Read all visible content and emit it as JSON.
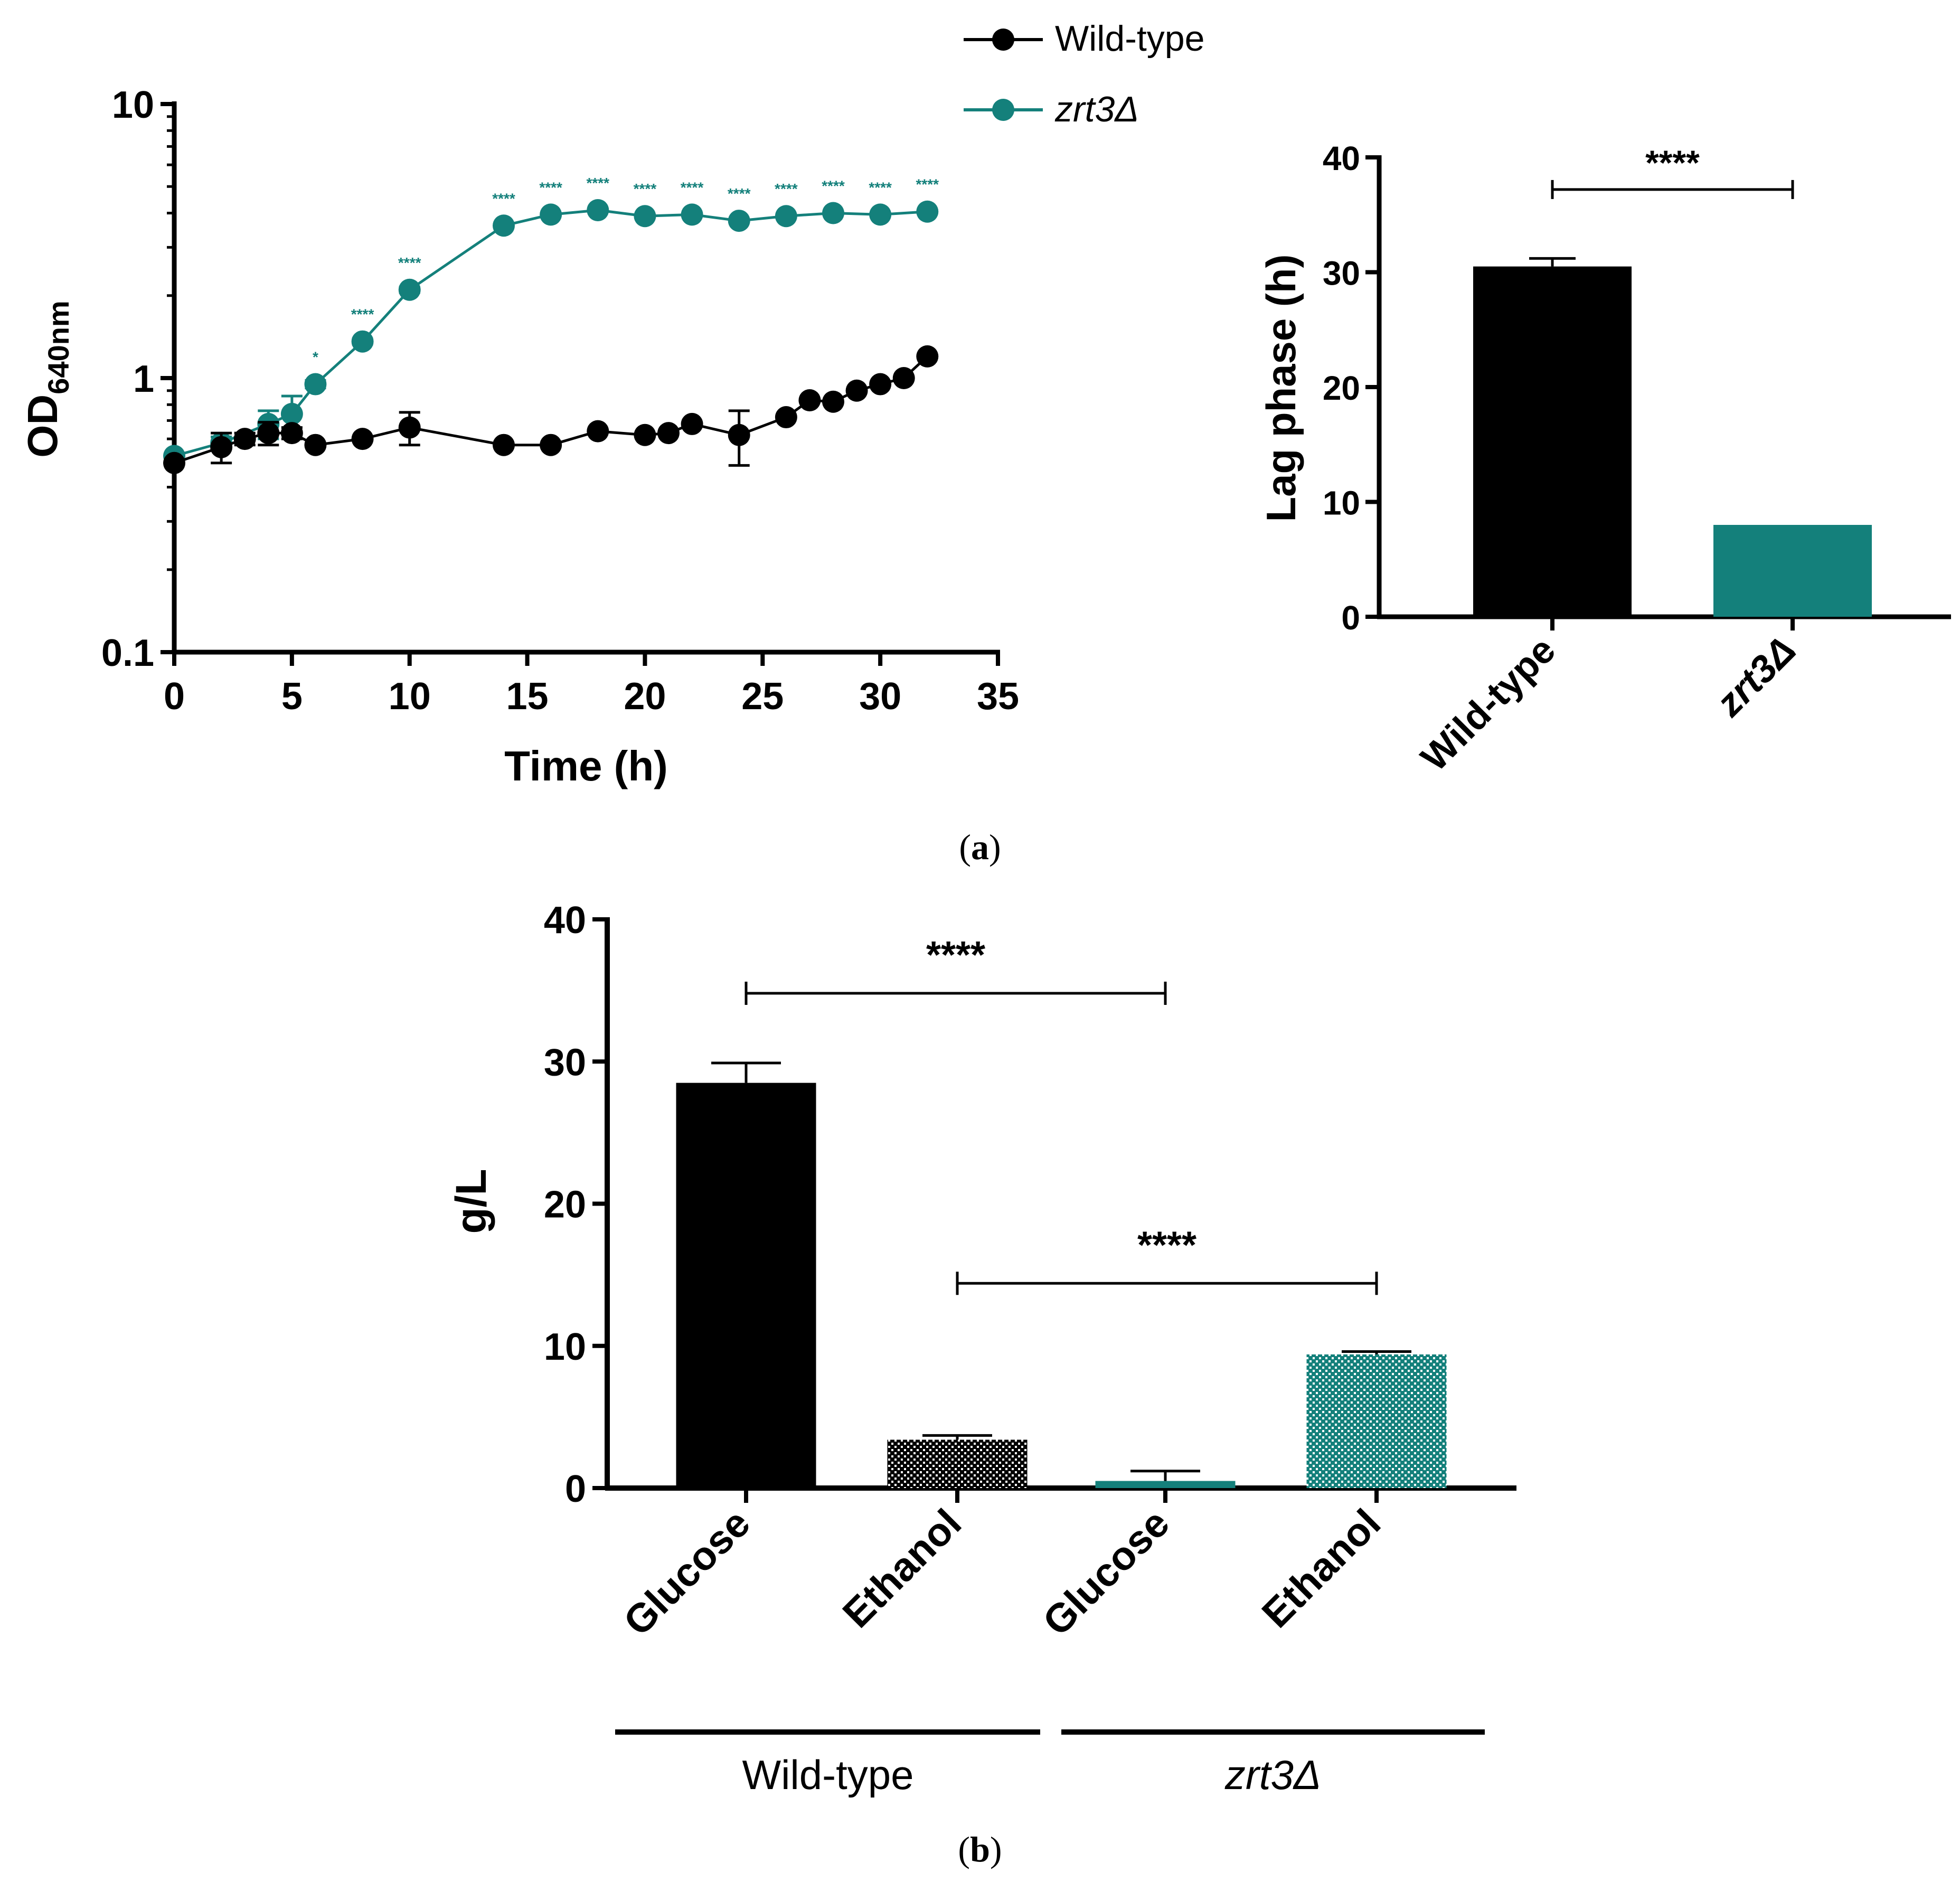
{
  "colors": {
    "wild_type": "#000000",
    "zrt3": "#14807b",
    "axis": "#000000"
  },
  "legend": {
    "items": [
      {
        "label": "Wild-type",
        "italic": false,
        "color": "#000000"
      },
      {
        "label": "zrt3Δ",
        "italic": true,
        "color": "#14807b"
      }
    ]
  },
  "panel_labels": {
    "a": "(a)",
    "b": "(b)"
  },
  "group_labels": {
    "wild_type": "Wild-type",
    "zrt3": "zrt3Δ"
  },
  "chart_data": [
    {
      "id": "growth",
      "type": "line",
      "xlabel": "Time (h)",
      "ylabel_main": "OD",
      "ylabel_sub": "640nm",
      "xlim": [
        0,
        35
      ],
      "xticks": [
        0,
        5,
        10,
        15,
        20,
        25,
        30,
        35
      ],
      "yscale": "log",
      "ylim": [
        0.1,
        10
      ],
      "yticks": [
        {
          "v": 0.1,
          "label": "0.1"
        },
        {
          "v": 1,
          "label": "1"
        },
        {
          "v": 10,
          "label": "10"
        }
      ],
      "series": [
        {
          "name": "Wild-type",
          "color": "#000000",
          "x": [
            0,
            2,
            3,
            4,
            5,
            6,
            8,
            10,
            14,
            16,
            18,
            20,
            21,
            22,
            24,
            26,
            27,
            28,
            29,
            30,
            31,
            32
          ],
          "y": [
            0.49,
            0.56,
            0.6,
            0.63,
            0.63,
            0.57,
            0.6,
            0.66,
            0.57,
            0.57,
            0.64,
            0.62,
            0.63,
            0.68,
            0.62,
            0.72,
            0.83,
            0.82,
            0.9,
            0.95,
            1.0,
            1.2
          ],
          "err": [
            0.02,
            0.07,
            0.03,
            0.06,
            0.03,
            0.02,
            0.02,
            0.09,
            0.02,
            0.02,
            0.02,
            0.02,
            0.02,
            0.02,
            0.14,
            0.02,
            0.02,
            0.02,
            0.02,
            0.02,
            0.02,
            0.02
          ]
        },
        {
          "name": "zrt3Δ",
          "color": "#14807b",
          "x": [
            0,
            2,
            4,
            5,
            6,
            8,
            10,
            14,
            16,
            18,
            20,
            22,
            24,
            26,
            28,
            30,
            32
          ],
          "y": [
            0.52,
            0.58,
            0.68,
            0.74,
            0.95,
            1.36,
            2.1,
            3.6,
            3.95,
            4.1,
            3.9,
            3.95,
            3.75,
            3.9,
            4.0,
            3.95,
            4.05
          ],
          "err": [
            0.02,
            0.03,
            0.08,
            0.12,
            0.03,
            0.03,
            0.05,
            0.05,
            0.05,
            0.05,
            0.05,
            0.05,
            0.05,
            0.05,
            0.05,
            0.05,
            0.05
          ],
          "significance": [
            "",
            "",
            "",
            "",
            "*",
            "****",
            "****",
            "****",
            "****",
            "****",
            "****",
            "****",
            "****",
            "****",
            "****",
            "****",
            "****"
          ]
        }
      ]
    },
    {
      "id": "lag",
      "type": "bar",
      "ylabel": "Lag phase (h)",
      "ylim": [
        0,
        40
      ],
      "yticks": [
        0,
        10,
        20,
        30,
        40
      ],
      "categories": [
        "Wild-type",
        "zrt3Δ"
      ],
      "italic": [
        false,
        true
      ],
      "values": [
        30.5,
        8
      ],
      "err": [
        0.7,
        0
      ],
      "colors": [
        "#000000",
        "#14807b"
      ],
      "significance": [
        {
          "from": 0,
          "to": 1,
          "y": 37.2,
          "label": "****"
        }
      ]
    },
    {
      "id": "metabolites",
      "type": "bar",
      "ylabel": "g/L",
      "ylim": [
        0,
        40
      ],
      "yticks": [
        0,
        10,
        20,
        30,
        40
      ],
      "categories": [
        "Glucose",
        "Ethanol",
        "Glucose",
        "Ethanol"
      ],
      "groups": [
        "Wild-type",
        "Wild-type",
        "zrt3Δ",
        "zrt3Δ"
      ],
      "values": [
        28.5,
        3.4,
        0.5,
        9.4
      ],
      "err": [
        1.4,
        0.3,
        0.7,
        0.2
      ],
      "colors": [
        "#000000",
        "#000000",
        "#14807b",
        "#14807b"
      ],
      "fill": [
        "solid",
        "dotted",
        "solid",
        "dotted"
      ],
      "significance": [
        {
          "from": 0,
          "to": 2,
          "y": 34.8,
          "label": "****"
        },
        {
          "from": 1,
          "to": 3,
          "y": 14.4,
          "label": "****"
        }
      ]
    }
  ]
}
